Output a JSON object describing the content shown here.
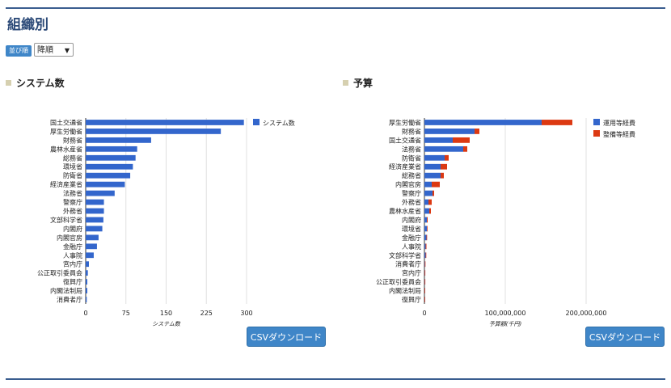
{
  "page": {
    "title": "組織別",
    "sort_label": "並び順",
    "sort_value": "降順",
    "csv_button": "CSVダウンロード"
  },
  "colors": {
    "blue": "#3366cc",
    "red": "#dc3912",
    "grid": "#e0e0e0"
  },
  "chart_data": [
    {
      "type": "bar",
      "orientation": "horizontal",
      "title": "システム数",
      "xlabel": "システム数",
      "xlim": [
        0,
        300
      ],
      "x_ticks": [
        "0",
        "75",
        "150",
        "225",
        "300"
      ],
      "legend_position": "top-right",
      "categories": [
        "国土交通省",
        "厚生労働省",
        "財務省",
        "農林水産省",
        "総務省",
        "環境省",
        "防衛省",
        "経済産業省",
        "法務省",
        "警察庁",
        "外務省",
        "文部科学省",
        "内閣府",
        "内閣官房",
        "金融庁",
        "人事院",
        "宮内庁",
        "公正取引委員会",
        "復興庁",
        "内閣法制局",
        "消費者庁"
      ],
      "series": [
        {
          "name": "システム数",
          "values": [
            295,
            252,
            122,
            96,
            93,
            88,
            83,
            73,
            54,
            34,
            34,
            33,
            31,
            24,
            21,
            15,
            6,
            4,
            3,
            3,
            2
          ]
        }
      ]
    },
    {
      "type": "bar",
      "orientation": "horizontal",
      "stacked": true,
      "title": "予算",
      "xlabel": "予算額(千円)",
      "xlim": [
        0,
        200000000
      ],
      "x_ticks": [
        "0",
        "100,000,000",
        "200,000,000"
      ],
      "legend_position": "top-right",
      "categories": [
        "厚生労働省",
        "財務省",
        "国土交通省",
        "法務省",
        "防衛省",
        "経済産業省",
        "総務省",
        "内閣官房",
        "警察庁",
        "外務省",
        "農林水産省",
        "内閣府",
        "環境省",
        "金融庁",
        "人事院",
        "文部科学省",
        "消費者庁",
        "宮内庁",
        "公正取引委員会",
        "内閣法制局",
        "復興庁"
      ],
      "series": [
        {
          "name": "運用等経費",
          "values": [
            145000000,
            62000000,
            35000000,
            48000000,
            25000000,
            20000000,
            20000000,
            9000000,
            10000000,
            5000000,
            6000000,
            3000000,
            3000000,
            2500000,
            1500000,
            1500000,
            500000,
            300000,
            300000,
            200000,
            200000
          ]
        },
        {
          "name": "整備等経費",
          "values": [
            38000000,
            6000000,
            21000000,
            5000000,
            5000000,
            8000000,
            4000000,
            10000000,
            2000000,
            4000000,
            2000000,
            1000000,
            500000,
            500000,
            1000000,
            500000,
            200000,
            100000,
            100000,
            100000,
            100000
          ]
        }
      ]
    }
  ]
}
